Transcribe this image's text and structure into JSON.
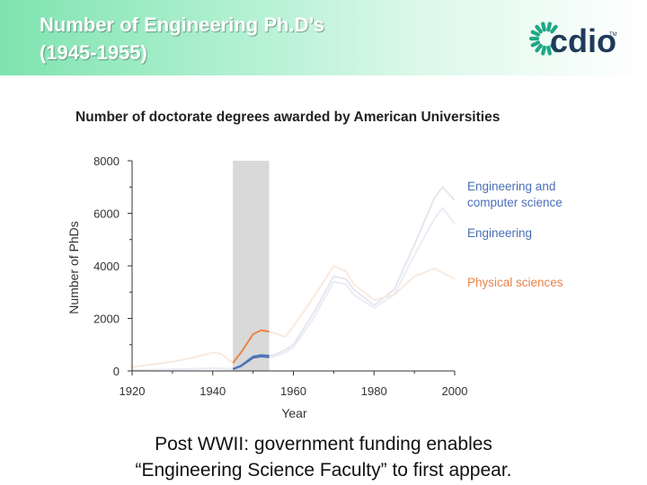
{
  "header": {
    "title_line1": "Number of Engineering Ph.D’s",
    "title_line2": "(1945-1955)",
    "logo_text": "cdio",
    "logo_tm": "TM"
  },
  "chart_data": {
    "type": "line",
    "title": "Number of doctorate degrees awarded by American Universities",
    "xlabel": "Year",
    "ylabel": "Number of PhDs",
    "xlim": [
      1920,
      2000
    ],
    "ylim": [
      0,
      8000
    ],
    "x_ticks": [
      1920,
      1940,
      1960,
      1980,
      2000
    ],
    "y_ticks": [
      0,
      2000,
      4000,
      6000,
      8000
    ],
    "x_tick_labels": [
      "1920",
      "1940",
      "1960",
      "1980",
      "2000"
    ],
    "y_tick_labels": [
      "0",
      "2000",
      "4000",
      "6000",
      "8000"
    ],
    "highlight": {
      "x_start": 1945,
      "x_end": 1954,
      "color": "#d9d9d9"
    },
    "series": [
      {
        "name": "Engineering and computer science",
        "label_line1": "Engineering and",
        "label_line2": "computer science",
        "color": "#4a6fb5",
        "highlight_color": "#4a6fb5",
        "faded_color": "#e6e6f0",
        "x": [
          1920,
          1925,
          1930,
          1935,
          1940,
          1945,
          1947,
          1950,
          1952,
          1954,
          1955,
          1958,
          1960,
          1965,
          1970,
          1973,
          1975,
          1980,
          1985,
          1990,
          1995,
          1997,
          2000
        ],
        "y": [
          30,
          40,
          60,
          80,
          100,
          80,
          200,
          550,
          600,
          580,
          600,
          800,
          1000,
          2200,
          3600,
          3500,
          3100,
          2500,
          3100,
          4800,
          6600,
          7000,
          6500
        ]
      },
      {
        "name": "Engineering",
        "label": "Engineering",
        "color": "#4a6fb5",
        "highlight_color": "#4a6fb5",
        "faded_color": "#ececf4",
        "x": [
          1920,
          1925,
          1930,
          1935,
          1940,
          1945,
          1947,
          1950,
          1952,
          1954,
          1955,
          1958,
          1960,
          1965,
          1970,
          1973,
          1975,
          1980,
          1985,
          1990,
          1995,
          1997,
          2000
        ],
        "y": [
          25,
          35,
          55,
          75,
          90,
          70,
          180,
          500,
          550,
          520,
          540,
          700,
          900,
          2000,
          3400,
          3300,
          2900,
          2400,
          2900,
          4400,
          5800,
          6200,
          5600
        ]
      },
      {
        "name": "Physical sciences",
        "label": "Physical sciences",
        "color": "#e8834a",
        "highlight_color": "#e8834a",
        "faded_color": "#f8eadf",
        "x": [
          1920,
          1925,
          1930,
          1935,
          1940,
          1942,
          1945,
          1947,
          1950,
          1952,
          1954,
          1955,
          1958,
          1960,
          1965,
          1970,
          1973,
          1975,
          1980,
          1985,
          1990,
          1995,
          2000
        ],
        "y": [
          150,
          250,
          350,
          500,
          700,
          650,
          300,
          700,
          1400,
          1550,
          1500,
          1450,
          1300,
          1700,
          2800,
          4000,
          3800,
          3300,
          2700,
          2900,
          3600,
          3900,
          3500
        ]
      }
    ]
  },
  "caption": {
    "line1": "Post WWII:  government funding enables",
    "line2": "“Engineering Science Faculty” to first appear."
  }
}
